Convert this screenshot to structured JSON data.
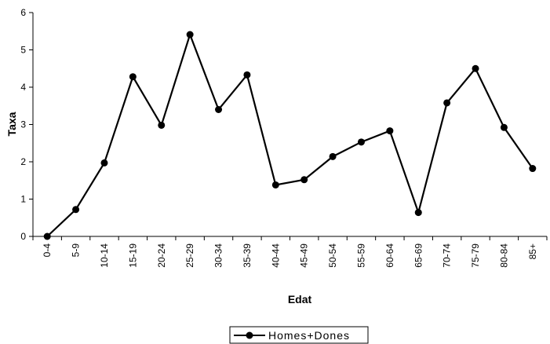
{
  "chart_data": {
    "type": "line",
    "xlabel": "Edat",
    "ylabel": "Taxa",
    "ylim": [
      0,
      6
    ],
    "yticks": [
      "0",
      "1",
      "2",
      "3",
      "4",
      "5",
      "6"
    ],
    "grid": false,
    "legend_position": "bottom",
    "categories": [
      "0-4",
      "5-9",
      "10-14",
      "15-19",
      "20-24",
      "25-29",
      "30-34",
      "35-39",
      "40-44",
      "45-49",
      "50-54",
      "55-59",
      "60-64",
      "65-69",
      "70-74",
      "75-79",
      "80-84",
      "85+"
    ],
    "series": [
      {
        "name": "Homes+Dones",
        "color": "#000000",
        "values": [
          0.0,
          0.72,
          1.97,
          4.28,
          2.98,
          5.41,
          3.4,
          4.33,
          1.38,
          1.52,
          2.14,
          2.53,
          2.83,
          0.64,
          3.58,
          4.5,
          2.92,
          1.82
        ]
      }
    ]
  }
}
